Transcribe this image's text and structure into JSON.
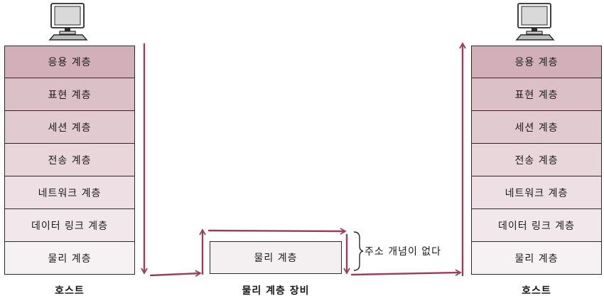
{
  "layer_colors": [
    "#d1b0ba",
    "#dcc0c8",
    "#e1cbd1",
    "#e8d6da",
    "#eddfe3",
    "#f2e8eb",
    "#f6f1f3"
  ],
  "left_host": {
    "layers": [
      "응용 계층",
      "표현 계층",
      "세션 계층",
      "전송 계층",
      "네트워크 계층",
      "데이터 링크 계층",
      "물리 계층"
    ],
    "caption": "호스트"
  },
  "device": {
    "layer": "물리 계층",
    "caption": "물리 계층 장비",
    "note": "주소 개념이 없다"
  },
  "right_host": {
    "layers": [
      "응용 계층",
      "표현 계층",
      "세션 계층",
      "전송 계층",
      "네트워크 계층",
      "데이터 링크 계층",
      "물리 계층"
    ],
    "caption": "호스트"
  },
  "icons": {
    "host": "desktop-computer-icon"
  },
  "arrow_color": "#9b3e5a"
}
